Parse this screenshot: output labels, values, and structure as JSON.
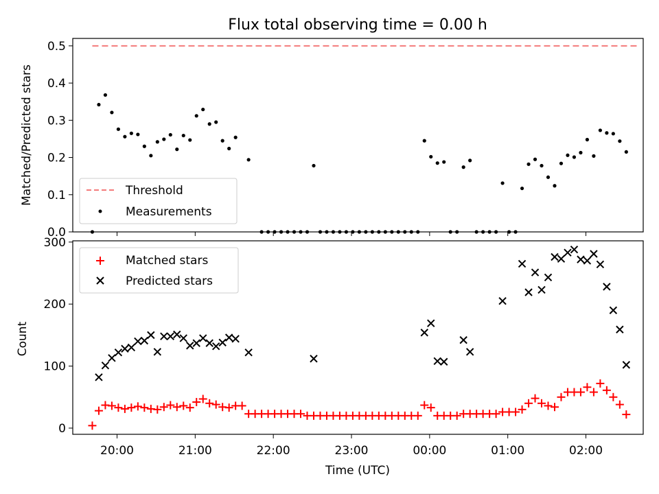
{
  "figure": {
    "title": "Flux total observing time = 0.00 h",
    "xlabel": "Time (UTC)"
  },
  "chart_data": [
    {
      "type": "scatter",
      "panel": "top",
      "title": "Flux total observing time = 0.00 h",
      "xlabel": "",
      "ylabel": "Matched/Predicted stars",
      "xlim": [
        "19:26",
        "02:44"
      ],
      "ylim": [
        0,
        0.52
      ],
      "y_ticks": [
        0,
        0.1,
        0.2,
        0.3,
        0.4,
        0.5
      ],
      "y_tick_labels": [
        "0.0",
        "0.1",
        "0.2",
        "0.3",
        "0.4",
        "0.5"
      ],
      "x_ticks": [
        "20:00",
        "21:00",
        "22:00",
        "23:00",
        "00:00",
        "01:00",
        "02:00"
      ],
      "grid": false,
      "legend_position": "lower-left",
      "threshold": {
        "name": "Threshold",
        "value": 0.5,
        "x_start": "19:41",
        "x_end": "02:41",
        "color": "#f47a7a",
        "style": "dashed"
      },
      "series": [
        {
          "name": "Measurements",
          "color": "#000000",
          "marker": "dot",
          "points": [
            [
              "19:41",
              0.0
            ],
            [
              "19:46",
              0.342
            ],
            [
              "19:51",
              0.368
            ],
            [
              "19:56",
              0.321
            ],
            [
              "20:01",
              0.276
            ],
            [
              "20:06",
              0.256
            ],
            [
              "20:11",
              0.265
            ],
            [
              "20:16",
              0.262
            ],
            [
              "20:21",
              0.23
            ],
            [
              "20:26",
              0.205
            ],
            [
              "20:31",
              0.242
            ],
            [
              "20:36",
              0.249
            ],
            [
              "20:41",
              0.261
            ],
            [
              "20:46",
              0.222
            ],
            [
              "20:51",
              0.259
            ],
            [
              "20:56",
              0.247
            ],
            [
              "21:01",
              0.312
            ],
            [
              "21:06",
              0.329
            ],
            [
              "21:11",
              0.29
            ],
            [
              "21:16",
              0.295
            ],
            [
              "21:21",
              0.245
            ],
            [
              "21:26",
              0.224
            ],
            [
              "21:31",
              0.254
            ],
            [
              "21:41",
              0.194
            ],
            [
              "21:51",
              0.0
            ],
            [
              "21:56",
              0.0
            ],
            [
              "22:01",
              0.0
            ],
            [
              "22:06",
              0.0
            ],
            [
              "22:11",
              0.0
            ],
            [
              "22:16",
              0.0
            ],
            [
              "22:21",
              0.0
            ],
            [
              "22:26",
              0.0
            ],
            [
              "22:31",
              0.178
            ],
            [
              "22:36",
              0.0
            ],
            [
              "22:41",
              0.0
            ],
            [
              "22:46",
              0.0
            ],
            [
              "22:51",
              0.0
            ],
            [
              "22:56",
              0.0
            ],
            [
              "23:01",
              0.0
            ],
            [
              "23:06",
              0.0
            ],
            [
              "23:11",
              0.0
            ],
            [
              "23:16",
              0.0
            ],
            [
              "23:21",
              0.0
            ],
            [
              "23:26",
              0.0
            ],
            [
              "23:31",
              0.0
            ],
            [
              "23:36",
              0.0
            ],
            [
              "23:41",
              0.0
            ],
            [
              "23:46",
              0.0
            ],
            [
              "23:51",
              0.0
            ],
            [
              "23:56",
              0.245
            ],
            [
              "00:01",
              0.202
            ],
            [
              "00:06",
              0.185
            ],
            [
              "00:11",
              0.188
            ],
            [
              "00:16",
              0.0
            ],
            [
              "00:21",
              0.0
            ],
            [
              "00:26",
              0.174
            ],
            [
              "00:31",
              0.192
            ],
            [
              "00:36",
              0.0
            ],
            [
              "00:41",
              0.0
            ],
            [
              "00:46",
              0.0
            ],
            [
              "00:51",
              0.0
            ],
            [
              "00:56",
              0.131
            ],
            [
              "01:01",
              0.0
            ],
            [
              "01:06",
              0.0
            ],
            [
              "01:11",
              0.117
            ],
            [
              "01:16",
              0.182
            ],
            [
              "01:21",
              0.195
            ],
            [
              "01:26",
              0.178
            ],
            [
              "01:31",
              0.147
            ],
            [
              "01:36",
              0.124
            ],
            [
              "01:41",
              0.184
            ],
            [
              "01:46",
              0.206
            ],
            [
              "01:51",
              0.201
            ],
            [
              "01:56",
              0.213
            ],
            [
              "02:01",
              0.248
            ],
            [
              "02:06",
              0.204
            ],
            [
              "02:11",
              0.273
            ],
            [
              "02:16",
              0.266
            ],
            [
              "02:21",
              0.264
            ],
            [
              "02:26",
              0.244
            ],
            [
              "02:31",
              0.215
            ]
          ]
        }
      ],
      "legend": [
        "Threshold",
        "Measurements"
      ]
    },
    {
      "type": "scatter",
      "panel": "bottom",
      "title": "",
      "xlabel": "Time (UTC)",
      "ylabel": "Count",
      "xlim": [
        "19:26",
        "02:44"
      ],
      "ylim": [
        -10,
        302
      ],
      "y_ticks": [
        0,
        100,
        200,
        300
      ],
      "y_tick_labels": [
        "0",
        "100",
        "200",
        "300"
      ],
      "x_ticks": [
        "20:00",
        "21:00",
        "22:00",
        "23:00",
        "00:00",
        "01:00",
        "02:00"
      ],
      "x_tick_labels": [
        "20:00",
        "21:00",
        "22:00",
        "23:00",
        "00:00",
        "01:00",
        "02:00"
      ],
      "grid": false,
      "legend_position": "upper-left",
      "series": [
        {
          "name": "Matched stars",
          "color": "#ff0000",
          "marker": "plus",
          "points": [
            [
              "19:41",
              4
            ],
            [
              "19:46",
              28
            ],
            [
              "19:51",
              37
            ],
            [
              "19:56",
              36
            ],
            [
              "20:01",
              33
            ],
            [
              "20:06",
              31
            ],
            [
              "20:11",
              33
            ],
            [
              "20:16",
              35
            ],
            [
              "20:21",
              33
            ],
            [
              "20:26",
              31
            ],
            [
              "20:31",
              30
            ],
            [
              "20:36",
              34
            ],
            [
              "20:41",
              37
            ],
            [
              "20:46",
              34
            ],
            [
              "20:51",
              36
            ],
            [
              "20:56",
              33
            ],
            [
              "21:01",
              42
            ],
            [
              "21:06",
              47
            ],
            [
              "21:11",
              40
            ],
            [
              "21:16",
              38
            ],
            [
              "21:21",
              34
            ],
            [
              "21:26",
              33
            ],
            [
              "21:31",
              36
            ],
            [
              "21:36",
              36
            ],
            [
              "21:41",
              23
            ],
            [
              "21:46",
              23
            ],
            [
              "21:51",
              23
            ],
            [
              "21:56",
              23
            ],
            [
              "22:01",
              23
            ],
            [
              "22:06",
              23
            ],
            [
              "22:11",
              23
            ],
            [
              "22:16",
              23
            ],
            [
              "22:21",
              23
            ],
            [
              "22:26",
              20
            ],
            [
              "22:31",
              20
            ],
            [
              "22:36",
              20
            ],
            [
              "22:41",
              20
            ],
            [
              "22:46",
              20
            ],
            [
              "22:51",
              20
            ],
            [
              "22:56",
              20
            ],
            [
              "23:01",
              20
            ],
            [
              "23:06",
              20
            ],
            [
              "23:11",
              20
            ],
            [
              "23:16",
              20
            ],
            [
              "23:21",
              20
            ],
            [
              "23:26",
              20
            ],
            [
              "23:31",
              20
            ],
            [
              "23:36",
              20
            ],
            [
              "23:41",
              20
            ],
            [
              "23:46",
              20
            ],
            [
              "23:51",
              20
            ],
            [
              "23:56",
              37
            ],
            [
              "00:01",
              33
            ],
            [
              "00:06",
              20
            ],
            [
              "00:11",
              20
            ],
            [
              "00:16",
              20
            ],
            [
              "00:21",
              20
            ],
            [
              "00:26",
              23
            ],
            [
              "00:31",
              23
            ],
            [
              "00:36",
              23
            ],
            [
              "00:41",
              23
            ],
            [
              "00:46",
              23
            ],
            [
              "00:51",
              23
            ],
            [
              "00:56",
              26
            ],
            [
              "01:01",
              26
            ],
            [
              "01:06",
              26
            ],
            [
              "01:11",
              30
            ],
            [
              "01:16",
              40
            ],
            [
              "01:21",
              48
            ],
            [
              "01:26",
              40
            ],
            [
              "01:31",
              36
            ],
            [
              "01:36",
              34
            ],
            [
              "01:41",
              50
            ],
            [
              "01:46",
              58
            ],
            [
              "01:51",
              58
            ],
            [
              "01:56",
              58
            ],
            [
              "02:01",
              66
            ],
            [
              "02:06",
              58
            ],
            [
              "02:11",
              72
            ],
            [
              "02:16",
              61
            ],
            [
              "02:21",
              50
            ],
            [
              "02:26",
              38
            ],
            [
              "02:31",
              22
            ]
          ]
        },
        {
          "name": "Predicted stars",
          "color": "#000000",
          "marker": "x",
          "points": [
            [
              "19:46",
              82
            ],
            [
              "19:51",
              101
            ],
            [
              "19:56",
              113
            ],
            [
              "20:01",
              122
            ],
            [
              "20:06",
              128
            ],
            [
              "20:11",
              130
            ],
            [
              "20:16",
              140
            ],
            [
              "20:21",
              141
            ],
            [
              "20:26",
              150
            ],
            [
              "20:31",
              123
            ],
            [
              "20:36",
              148
            ],
            [
              "20:41",
              148
            ],
            [
              "20:46",
              151
            ],
            [
              "20:51",
              145
            ],
            [
              "20:56",
              133
            ],
            [
              "21:01",
              137
            ],
            [
              "21:06",
              145
            ],
            [
              "21:11",
              137
            ],
            [
              "21:16",
              132
            ],
            [
              "21:21",
              138
            ],
            [
              "21:26",
              146
            ],
            [
              "21:31",
              144
            ],
            [
              "21:41",
              122
            ],
            [
              "22:31",
              112
            ],
            [
              "23:56",
              154
            ],
            [
              "00:01",
              169
            ],
            [
              "00:06",
              108
            ],
            [
              "00:11",
              107
            ],
            [
              "00:26",
              142
            ],
            [
              "00:31",
              123
            ],
            [
              "00:56",
              205
            ],
            [
              "01:11",
              265
            ],
            [
              "01:16",
              219
            ],
            [
              "01:21",
              251
            ],
            [
              "01:26",
              223
            ],
            [
              "01:31",
              243
            ],
            [
              "01:36",
              276
            ],
            [
              "01:41",
              273
            ],
            [
              "01:46",
              283
            ],
            [
              "01:51",
              288
            ],
            [
              "01:56",
              272
            ],
            [
              "02:01",
              270
            ],
            [
              "02:06",
              281
            ],
            [
              "02:11",
              264
            ],
            [
              "02:16",
              228
            ],
            [
              "02:21",
              190
            ],
            [
              "02:26",
              159
            ],
            [
              "02:31",
              102
            ]
          ]
        }
      ],
      "legend": [
        "Matched stars",
        "Predicted stars"
      ]
    }
  ]
}
